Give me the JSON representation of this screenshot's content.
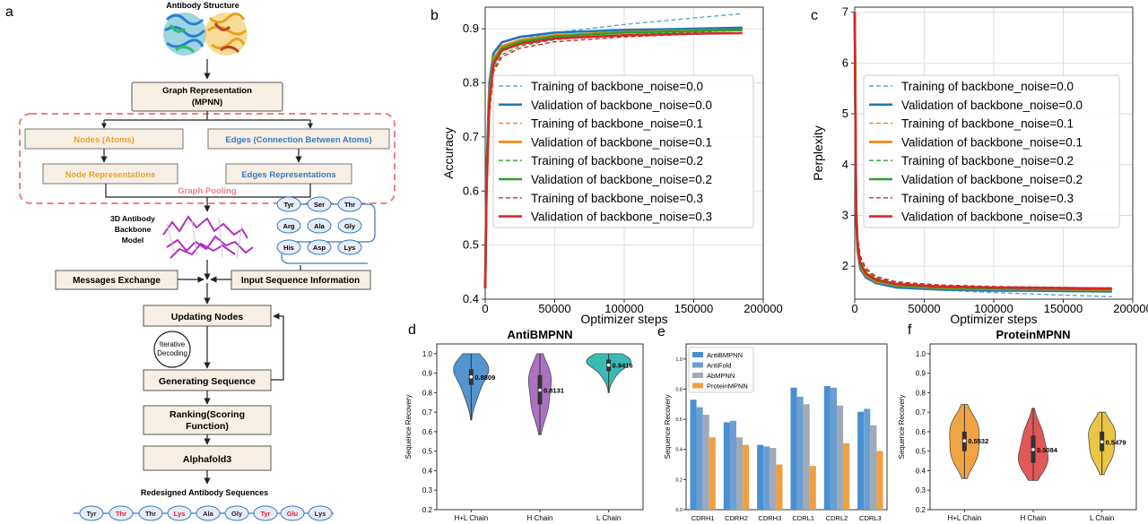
{
  "panel_letters": [
    "a",
    "b",
    "c",
    "d",
    "e",
    "f"
  ],
  "flow": {
    "antibody_structure_label": "Antibody Structure",
    "graph_rep": "Graph Representation",
    "graph_rep_sub": "(MPNN)",
    "nodes": "Nodes (Atoms)",
    "edges": "Edges (Connection Between Atoms)",
    "node_reps": "Node Representations",
    "edge_reps": "Edges Representations",
    "graph_pooling": "Graph Pooling",
    "backbone_label": [
      "3D Antibody",
      "Backbone",
      "Model"
    ],
    "residues_grid": [
      "Tyr",
      "Ser",
      "Thr",
      "Arg",
      "Ala",
      "Gly",
      "His",
      "Asp",
      "Lys"
    ],
    "messages_exchange": "Messages Exchange",
    "input_seq": "Input Sequence Information",
    "updating_nodes": "Updating Nodes",
    "iterative": [
      "Iterative",
      "Decoding"
    ],
    "generating_seq": "Generating Sequence",
    "ranking": [
      "Ranking(Scoring",
      "Function)"
    ],
    "alphafold": "Alphafold3",
    "redesigned": "Redesigned Antibody Sequences",
    "final_seq": [
      "Tyr",
      "Thr",
      "Thr",
      "Lys",
      "Ala",
      "Gly",
      "Tyr",
      "Glu",
      "Lys"
    ],
    "final_seq_highlight": [
      false,
      true,
      false,
      true,
      false,
      false,
      true,
      true,
      false
    ]
  },
  "colors": {
    "noise0": "#1f77b4",
    "noise0_train": "#5fa2dd",
    "noise1": "#ff7f0e",
    "noise2": "#2ca02c",
    "noise3": "#d62728",
    "violin_blue": "#4a90cf",
    "violin_purple": "#a86bbf",
    "violin_teal": "#2fb8b0",
    "violin_orange": "#f0a03a",
    "violin_red": "#e05050",
    "violin_yellow": "#e8c43c",
    "bar_antibmpnn": "#4a8fd0",
    "bar_antifold": "#6a9fd3",
    "bar_abmpnn": "#9fa9b8",
    "bar_proteinmpnn": "#f0a040",
    "pooling": "#f08080",
    "node_text": "#e8a030",
    "edge_text": "#3a78c0"
  },
  "chart_data": [
    {
      "id": "b",
      "type": "line",
      "xlabel": "Optimizer steps",
      "ylabel": "Accuracy",
      "xlim": [
        0,
        200000
      ],
      "ylim": [
        0.4,
        0.94
      ],
      "xticks": [
        0,
        50000,
        100000,
        150000,
        200000
      ],
      "xtick_labels": [
        "0",
        "50000",
        "100000",
        "150000",
        "200000"
      ],
      "yticks": [
        0.4,
        0.5,
        0.6,
        0.7,
        0.8,
        0.9
      ],
      "ytick_labels": [
        "0.4",
        "0.5",
        "0.6",
        "0.7",
        "0.8",
        "0.9"
      ],
      "grid": true,
      "legend": "center",
      "series": [
        {
          "name": "Training of backbone_noise=0.0",
          "style": "dashed",
          "color": "#5fa2dd",
          "x": [
            0,
            1000,
            3000,
            6000,
            12000,
            25000,
            50000,
            100000,
            150000,
            185000
          ],
          "y": [
            0.42,
            0.62,
            0.78,
            0.84,
            0.865,
            0.88,
            0.893,
            0.908,
            0.92,
            0.928
          ]
        },
        {
          "name": "Validation of backbone_noise=0.0",
          "style": "solid",
          "color": "#1f77b4",
          "x": [
            0,
            1000,
            3000,
            6000,
            12000,
            25000,
            50000,
            100000,
            150000,
            185000
          ],
          "y": [
            0.42,
            0.64,
            0.8,
            0.855,
            0.875,
            0.885,
            0.893,
            0.898,
            0.9,
            0.902
          ]
        },
        {
          "name": "Training of backbone_noise=0.1",
          "style": "dashed",
          "color": "#ff7f0e",
          "x": [
            0,
            1000,
            3000,
            6000,
            12000,
            25000,
            50000,
            100000,
            150000,
            185000
          ],
          "y": [
            0.42,
            0.6,
            0.76,
            0.83,
            0.858,
            0.874,
            0.885,
            0.893,
            0.897,
            0.9
          ]
        },
        {
          "name": "Validation of backbone_noise=0.1",
          "style": "solid",
          "color": "#ff7f0e",
          "x": [
            0,
            1000,
            3000,
            6000,
            12000,
            25000,
            50000,
            100000,
            150000,
            185000
          ],
          "y": [
            0.42,
            0.62,
            0.78,
            0.845,
            0.868,
            0.879,
            0.888,
            0.894,
            0.897,
            0.898
          ]
        },
        {
          "name": "Training of backbone_noise=0.2",
          "style": "dashed",
          "color": "#2ca02c",
          "x": [
            0,
            1000,
            3000,
            6000,
            12000,
            25000,
            50000,
            100000,
            150000,
            185000
          ],
          "y": [
            0.42,
            0.59,
            0.75,
            0.825,
            0.852,
            0.868,
            0.88,
            0.889,
            0.894,
            0.897
          ]
        },
        {
          "name": "Validation of backbone_noise=0.2",
          "style": "solid",
          "color": "#2ca02c",
          "x": [
            0,
            1000,
            3000,
            6000,
            12000,
            25000,
            50000,
            100000,
            150000,
            185000
          ],
          "y": [
            0.42,
            0.61,
            0.77,
            0.84,
            0.864,
            0.876,
            0.886,
            0.893,
            0.896,
            0.898
          ]
        },
        {
          "name": "Training of backbone_noise=0.3",
          "style": "dashed",
          "color": "#d62728",
          "x": [
            0,
            1000,
            3000,
            6000,
            12000,
            25000,
            50000,
            100000,
            150000,
            185000
          ],
          "y": [
            0.42,
            0.58,
            0.74,
            0.82,
            0.848,
            0.864,
            0.876,
            0.885,
            0.89,
            0.893
          ]
        },
        {
          "name": "Validation of backbone_noise=0.3",
          "style": "solid",
          "color": "#d62728",
          "x": [
            0,
            1000,
            3000,
            6000,
            12000,
            25000,
            50000,
            100000,
            150000,
            185000
          ],
          "y": [
            0.42,
            0.6,
            0.76,
            0.835,
            0.86,
            0.872,
            0.882,
            0.888,
            0.891,
            0.892
          ]
        }
      ]
    },
    {
      "id": "c",
      "type": "line",
      "xlabel": "Optimizer steps",
      "ylabel": "Perplexity",
      "xlim": [
        0,
        200000
      ],
      "ylim": [
        1.35,
        7.1
      ],
      "xticks": [
        0,
        50000,
        100000,
        150000,
        200000
      ],
      "xtick_labels": [
        "0",
        "50000",
        "100000",
        "150000",
        "200000"
      ],
      "yticks": [
        2,
        3,
        4,
        5,
        6,
        7
      ],
      "ytick_labels": [
        "2",
        "3",
        "4",
        "5",
        "6",
        "7"
      ],
      "grid": true,
      "legend": "upper right",
      "series": [
        {
          "name": "Training of backbone_noise=0.0",
          "style": "dashed",
          "color": "#5fa2dd",
          "x": [
            0,
            1000,
            2000,
            4000,
            8000,
            15000,
            30000,
            60000,
            100000,
            150000,
            185000
          ],
          "y": [
            7.0,
            3.2,
            2.4,
            2.05,
            1.85,
            1.72,
            1.6,
            1.53,
            1.48,
            1.43,
            1.4
          ]
        },
        {
          "name": "Validation of backbone_noise=0.0",
          "style": "solid",
          "color": "#1f77b4",
          "x": [
            0,
            1000,
            2000,
            4000,
            8000,
            15000,
            30000,
            60000,
            100000,
            150000,
            185000
          ],
          "y": [
            7.0,
            3.0,
            2.3,
            1.95,
            1.78,
            1.67,
            1.58,
            1.54,
            1.52,
            1.51,
            1.5
          ]
        },
        {
          "name": "Training of backbone_noise=0.1",
          "style": "dashed",
          "color": "#ff7f0e",
          "x": [
            0,
            1000,
            2000,
            4000,
            8000,
            15000,
            30000,
            60000,
            100000,
            150000,
            185000
          ],
          "y": [
            7.0,
            3.3,
            2.5,
            2.1,
            1.9,
            1.76,
            1.65,
            1.59,
            1.56,
            1.54,
            1.53
          ]
        },
        {
          "name": "Validation of backbone_noise=0.1",
          "style": "solid",
          "color": "#ff7f0e",
          "x": [
            0,
            1000,
            2000,
            4000,
            8000,
            15000,
            30000,
            60000,
            100000,
            150000,
            185000
          ],
          "y": [
            7.0,
            3.1,
            2.35,
            2.0,
            1.82,
            1.7,
            1.62,
            1.57,
            1.55,
            1.54,
            1.53
          ]
        },
        {
          "name": "Training of backbone_noise=0.2",
          "style": "dashed",
          "color": "#2ca02c",
          "x": [
            0,
            1000,
            2000,
            4000,
            8000,
            15000,
            30000,
            60000,
            100000,
            150000,
            185000
          ],
          "y": [
            7.0,
            3.35,
            2.55,
            2.15,
            1.93,
            1.78,
            1.67,
            1.61,
            1.58,
            1.56,
            1.55
          ]
        },
        {
          "name": "Validation of backbone_noise=0.2",
          "style": "solid",
          "color": "#2ca02c",
          "x": [
            0,
            1000,
            2000,
            4000,
            8000,
            15000,
            30000,
            60000,
            100000,
            150000,
            185000
          ],
          "y": [
            7.0,
            3.15,
            2.4,
            2.03,
            1.84,
            1.72,
            1.63,
            1.58,
            1.56,
            1.55,
            1.54
          ]
        },
        {
          "name": "Training of backbone_noise=0.3",
          "style": "dashed",
          "color": "#d62728",
          "x": [
            0,
            1000,
            2000,
            4000,
            8000,
            15000,
            30000,
            60000,
            100000,
            150000,
            185000
          ],
          "y": [
            7.0,
            3.4,
            2.6,
            2.2,
            1.96,
            1.8,
            1.69,
            1.63,
            1.6,
            1.58,
            1.57
          ]
        },
        {
          "name": "Validation of backbone_noise=0.3",
          "style": "solid",
          "color": "#d62728",
          "x": [
            0,
            1000,
            2000,
            4000,
            8000,
            15000,
            30000,
            60000,
            100000,
            150000,
            185000
          ],
          "y": [
            7.0,
            3.2,
            2.45,
            2.06,
            1.86,
            1.74,
            1.65,
            1.6,
            1.58,
            1.57,
            1.56
          ]
        }
      ]
    },
    {
      "id": "d",
      "type": "violin",
      "title": "AntiBMPNN",
      "ylabel": "Sequence Recovery",
      "ylim": [
        0.2,
        1.05
      ],
      "yticks": [
        0.2,
        0.3,
        0.4,
        0.5,
        0.6,
        0.7,
        0.8,
        0.9,
        1.0
      ],
      "ytick_labels": [
        "0.2",
        "0.3",
        "0.4",
        "0.5",
        "0.6",
        "0.7",
        "0.8",
        "0.9",
        "1.0"
      ],
      "categories": [
        "H+L Chain",
        "H Chain",
        "L Chain"
      ],
      "medians": [
        0.8809,
        0.8131,
        0.9416
      ],
      "median_labels": [
        "0.8809",
        "0.8131",
        "0.9416"
      ],
      "min": [
        0.66,
        0.585,
        0.8
      ],
      "max": [
        1.0,
        1.0,
        1.0
      ],
      "q1": [
        0.84,
        0.74,
        0.91
      ],
      "q3": [
        0.92,
        0.89,
        0.97
      ],
      "widths": [
        0.75,
        0.6,
        0.85
      ],
      "colors": [
        "#4a90cf",
        "#a86bbf",
        "#2fb8b0"
      ]
    },
    {
      "id": "e",
      "type": "bar",
      "ylabel": "Sequence Recovery",
      "ylim": [
        0.0,
        1.1
      ],
      "yticks": [
        0.0,
        0.2,
        0.4,
        0.6,
        0.8,
        1.0
      ],
      "ytick_labels": [
        "0.0",
        "0.2",
        "0.4",
        "0.6",
        "0.8",
        "1.0"
      ],
      "categories": [
        "CDRH1",
        "CDRH2",
        "CDRH3",
        "CDRL1",
        "CDRL2",
        "CDRL3"
      ],
      "legend": "upper left",
      "series": [
        {
          "name": "AntiBMPNN",
          "color": "#4a8fd0",
          "values": [
            0.73,
            0.58,
            0.43,
            0.81,
            0.82,
            0.65
          ]
        },
        {
          "name": "AntiFold",
          "color": "#6a9fd3",
          "values": [
            0.68,
            0.59,
            0.42,
            0.75,
            0.81,
            0.67
          ]
        },
        {
          "name": "AbMPNN",
          "color": "#9fa9b8",
          "values": [
            0.63,
            0.48,
            0.41,
            0.7,
            0.69,
            0.56
          ]
        },
        {
          "name": "ProteinMPNN",
          "color": "#f0a040",
          "values": [
            0.48,
            0.43,
            0.3,
            0.29,
            0.44,
            0.39
          ]
        }
      ]
    },
    {
      "id": "f",
      "type": "violin",
      "title": "ProteinMPNN",
      "ylabel": "Sequence Recovery",
      "ylim": [
        0.2,
        1.05
      ],
      "yticks": [
        0.2,
        0.3,
        0.4,
        0.5,
        0.6,
        0.7,
        0.8,
        0.9,
        1.0
      ],
      "ytick_labels": [
        "0.2",
        "0.3",
        "0.4",
        "0.5",
        "0.6",
        "0.7",
        "0.8",
        "0.9",
        "1.0"
      ],
      "categories": [
        "H+L Chain",
        "H Chain",
        "L Chain"
      ],
      "medians": [
        0.5532,
        0.5084,
        0.5479
      ],
      "median_labels": [
        "0.5532",
        "0.5084",
        "0.5479"
      ],
      "min": [
        0.36,
        0.35,
        0.38
      ],
      "max": [
        0.74,
        0.72,
        0.7
      ],
      "q1": [
        0.5,
        0.44,
        0.5
      ],
      "q3": [
        0.6,
        0.58,
        0.6
      ],
      "widths": [
        0.85,
        0.75,
        0.75
      ],
      "colors": [
        "#f0a03a",
        "#e05050",
        "#e8c43c"
      ]
    }
  ]
}
